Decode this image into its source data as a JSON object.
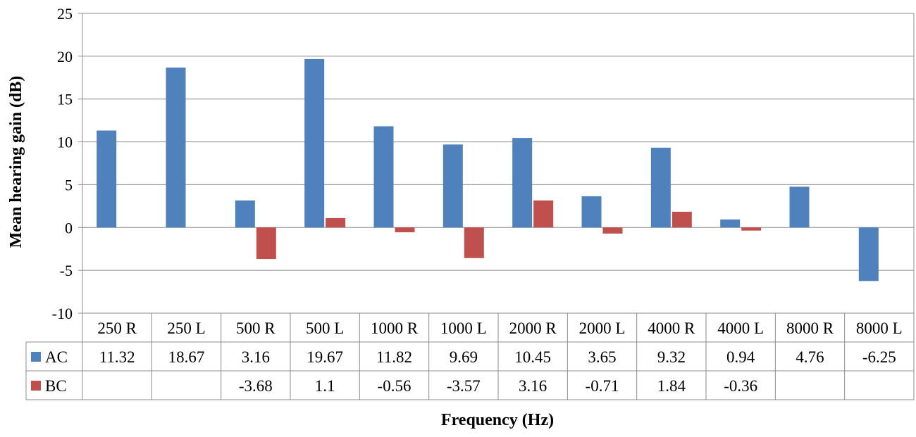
{
  "chart_data": {
    "type": "bar",
    "title": "",
    "xlabel": "Frequency (Hz)",
    "ylabel": "Mean hearing gain (dB)",
    "ylim": [
      -10,
      25
    ],
    "yticks": [
      25,
      20,
      15,
      10,
      5,
      0,
      -5,
      -10
    ],
    "grid": true,
    "legend_placement": "data-table-left",
    "categories": [
      "250 R",
      "250 L",
      "500 R",
      "500 L",
      "1000 R",
      "1000 L",
      "2000 R",
      "2000 L",
      "4000 R",
      "4000 L",
      "8000 R",
      "8000 L"
    ],
    "series": [
      {
        "name": "AC",
        "color": "#4F81BD",
        "values": [
          11.32,
          18.67,
          3.16,
          19.67,
          11.82,
          9.69,
          10.45,
          3.65,
          9.32,
          0.94,
          4.76,
          -6.25
        ],
        "labels": [
          "11.32",
          "18.67",
          "3.16",
          "19.67",
          "11.82",
          "9.69",
          "10.45",
          "3.65",
          "9.32",
          "0.94",
          "4.76",
          "-6.25"
        ]
      },
      {
        "name": "BC",
        "color": "#C0504D",
        "values": [
          null,
          null,
          -3.68,
          1.1,
          -0.56,
          -3.57,
          3.16,
          -0.71,
          1.84,
          -0.36,
          null,
          null
        ],
        "labels": [
          "",
          "",
          "-3.68",
          "1.1",
          "-0.56",
          "-3.57",
          "3.16",
          "-0.71",
          "1.84",
          "-0.36",
          "",
          ""
        ]
      }
    ]
  }
}
